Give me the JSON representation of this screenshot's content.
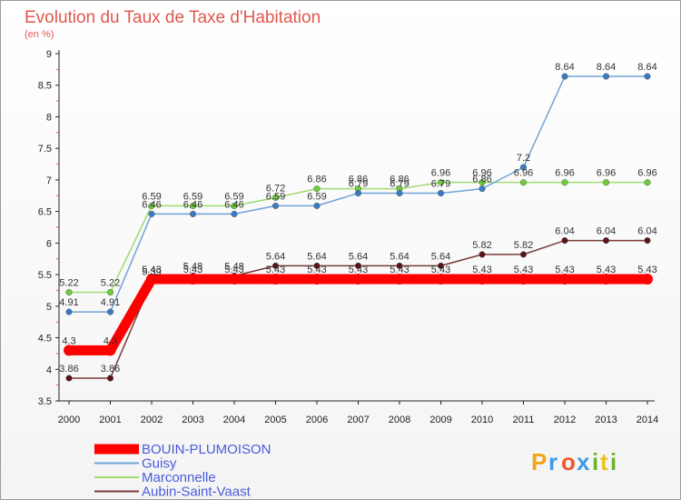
{
  "chart_data": {
    "type": "line",
    "title": "Evolution du Taux de Taxe d'Habitation",
    "subtitle": "(en %)",
    "x": [
      "2000",
      "2001",
      "2002",
      "2003",
      "2004",
      "2005",
      "2006",
      "2007",
      "2008",
      "2009",
      "2010",
      "2011",
      "2012",
      "2013",
      "2014"
    ],
    "ylim": [
      3.5,
      9
    ],
    "yticks": [
      "3.5",
      "4",
      "4.5",
      "5",
      "5.5",
      "6",
      "6.5",
      "7",
      "7.5",
      "8",
      "8.5",
      "9"
    ],
    "grid": false,
    "legend_position": "bottom-left",
    "series": [
      {
        "name": "BOUIN-PLUMOISON",
        "color": "#ff0000",
        "values": [
          4.3,
          4.3,
          5.43,
          5.43,
          5.43,
          5.43,
          5.43,
          5.43,
          5.43,
          5.43,
          5.43,
          5.43,
          5.43,
          5.43,
          5.43
        ],
        "labels": [
          "4.3",
          "4.3",
          "5.43",
          "5.43",
          "5.43",
          "5.43",
          "5.43",
          "5.43",
          "5.43",
          "5.43",
          "5.43",
          "5.43",
          "5.43",
          "5.43",
          "5.43"
        ]
      },
      {
        "name": "Guisy",
        "color": "#6fa3d6",
        "marker": "#3a7cc4",
        "values": [
          4.91,
          4.91,
          6.46,
          6.46,
          6.46,
          6.59,
          6.59,
          6.79,
          6.79,
          6.79,
          6.86,
          7.2,
          8.64,
          8.64,
          8.64
        ],
        "labels": [
          "4.91",
          "4.91",
          "6.46",
          "6.46",
          "6.46",
          "6.59",
          "6.59",
          "6.79",
          "6.79",
          "6.79",
          "6.86",
          "7.2",
          "8.64",
          "8.64",
          "8.64"
        ]
      },
      {
        "name": "Marconnelle",
        "color": "#9fdc6f",
        "marker": "#6ccf3a",
        "values": [
          5.22,
          5.22,
          6.59,
          6.59,
          6.59,
          6.72,
          6.86,
          6.86,
          6.86,
          6.96,
          6.96,
          6.96,
          6.96,
          6.96,
          6.96
        ],
        "labels": [
          "5.22",
          "5.22",
          "6.59",
          "6.59",
          "6.59",
          "6.72",
          "6.86",
          "6.86",
          "6.86",
          "6.96",
          "6.96",
          "6.96",
          "6.96",
          "6.96",
          "6.96"
        ]
      },
      {
        "name": "Aubin-Saint-Vaast",
        "color": "#7a3a3a",
        "marker": "#5a1414",
        "values": [
          3.86,
          3.86,
          5.39,
          5.48,
          5.48,
          5.64,
          5.64,
          5.64,
          5.64,
          5.64,
          5.82,
          5.82,
          6.04,
          6.04,
          6.04
        ],
        "labels": [
          "3.86",
          "3.86",
          "5.39",
          "5.48",
          "5.48",
          "5.64",
          "5.64",
          "5.64",
          "5.64",
          "5.64",
          "5.82",
          "5.82",
          "6.04",
          "6.04",
          "6.04"
        ]
      }
    ]
  },
  "logo": {
    "letters": [
      "P",
      "r",
      "o",
      "x",
      "i",
      "t",
      "i"
    ],
    "colors": [
      "#f7a21b",
      "#3d9be9",
      "#f0582d",
      "#3d9be9",
      "#6ab42d",
      "#e9c51b",
      "#6ab42d"
    ]
  }
}
